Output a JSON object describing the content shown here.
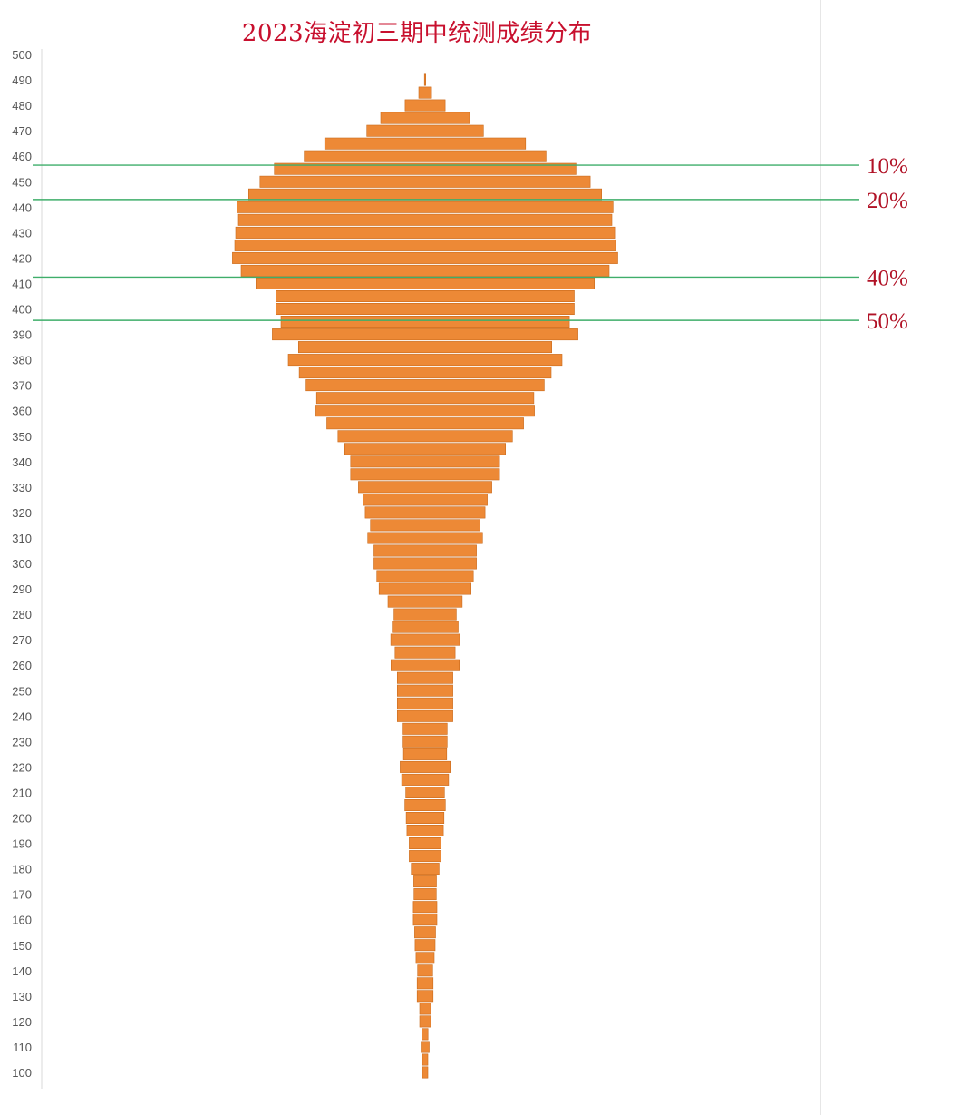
{
  "title": "2023海淀初三期中统测成绩分布",
  "colors": {
    "bar": "#ED8936",
    "bar_edge": "#C96A1C",
    "marker_line": "#3FAE6A",
    "marker_label": "#B11226",
    "title": "#C8102E"
  },
  "chart_data": {
    "type": "bar",
    "orientation": "horizontal",
    "style": "centered-funnel",
    "title": "2023海淀初三期中统测成绩分布",
    "ylim": [
      100,
      500
    ],
    "ytick_step": 10,
    "y_ticks": [
      "500",
      "490",
      "480",
      "470",
      "460",
      "450",
      "440",
      "430",
      "420",
      "410",
      "400",
      "390",
      "380",
      "370",
      "360",
      "350",
      "340",
      "330",
      "320",
      "310",
      "300",
      "290",
      "280",
      "270",
      "260",
      "250",
      "240",
      "230",
      "220",
      "210",
      "200",
      "190",
      "180",
      "170",
      "160",
      "150",
      "140",
      "130",
      "120",
      "110",
      "100"
    ],
    "bin_width": 5,
    "scores": [
      490,
      485,
      480,
      475,
      470,
      465,
      460,
      455,
      450,
      445,
      440,
      435,
      430,
      425,
      420,
      415,
      410,
      405,
      400,
      395,
      390,
      385,
      380,
      375,
      370,
      365,
      360,
      355,
      350,
      345,
      340,
      335,
      330,
      325,
      320,
      315,
      310,
      305,
      300,
      295,
      290,
      285,
      280,
      275,
      270,
      265,
      260,
      255,
      250,
      245,
      240,
      235,
      230,
      225,
      220,
      215,
      210,
      205,
      200,
      195,
      190,
      185,
      180,
      175,
      170,
      165,
      160,
      155,
      150,
      145,
      140,
      135,
      130,
      125,
      120,
      115,
      110,
      105,
      100
    ],
    "values": [
      3,
      28,
      88,
      195,
      256,
      441,
      531,
      662,
      725,
      775,
      825,
      820,
      832,
      836,
      846,
      808,
      743,
      655,
      655,
      633,
      671,
      556,
      601,
      553,
      523,
      477,
      480,
      432,
      383,
      353,
      327,
      327,
      293,
      273,
      263,
      240,
      252,
      225,
      225,
      212,
      202,
      163,
      137,
      145,
      151,
      132,
      150,
      122,
      122,
      122,
      122,
      97,
      97,
      95,
      110,
      103,
      85,
      89,
      83,
      80,
      70,
      70,
      61,
      50,
      49,
      52,
      52,
      46,
      44,
      40,
      33,
      35,
      35,
      24,
      24,
      13,
      18,
      12,
      12
    ],
    "reference_lines": [
      {
        "label": "10%",
        "score": 456.5
      },
      {
        "label": "20%",
        "score": 443
      },
      {
        "label": "40%",
        "score": 412.5
      },
      {
        "label": "50%",
        "score": 395.5
      }
    ],
    "legend": "none",
    "grid": false
  }
}
